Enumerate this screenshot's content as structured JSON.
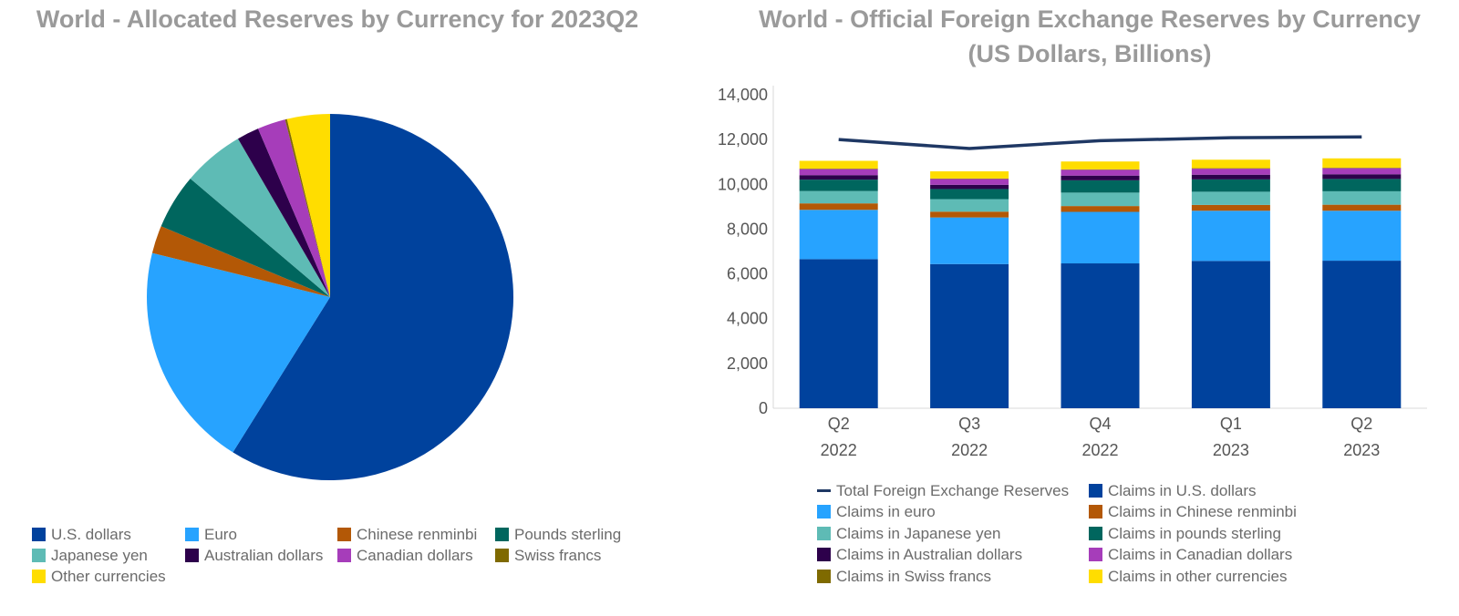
{
  "chart_data": [
    {
      "type": "pie",
      "title": "World - Allocated Reserves by Currency for 2023Q2",
      "legend_position": "bottom",
      "slices": [
        {
          "label": "U.S. dollars",
          "value": 58.9,
          "color": "#00429D"
        },
        {
          "label": "Euro",
          "value": 19.97,
          "color": "#27A3FF"
        },
        {
          "label": "Chinese renminbi",
          "value": 2.45,
          "color": "#B35806"
        },
        {
          "label": "Pounds sterling",
          "value": 4.88,
          "color": "#00665E"
        },
        {
          "label": "Japanese yen",
          "value": 5.42,
          "color": "#5EBBB5"
        },
        {
          "label": "Australian dollars",
          "value": 1.95,
          "color": "#2D004B"
        },
        {
          "label": "Canadian dollars",
          "value": 2.48,
          "color": "#A63DBA"
        },
        {
          "label": "Swiss francs",
          "value": 0.17,
          "color": "#7F6A00"
        },
        {
          "label": "Other currencies",
          "value": 3.78,
          "color": "#FFDD00"
        }
      ]
    },
    {
      "type": "bar",
      "stacked": true,
      "title": "World - Official Foreign Exchange Reserves by Currency",
      "subtitle": "(US Dollars, Billions)",
      "categories": [
        [
          "Q2",
          "2022"
        ],
        [
          "Q3",
          "2022"
        ],
        [
          "Q4",
          "2022"
        ],
        [
          "Q1",
          "2023"
        ],
        [
          "Q2",
          "2023"
        ]
      ],
      "ylim": [
        0,
        14000
      ],
      "yticks": [
        "0",
        "2,000",
        "4,000",
        "6,000",
        "8,000",
        "10,000",
        "12,000",
        "14,000"
      ],
      "ytick_values": [
        0,
        2000,
        4000,
        6000,
        8000,
        10000,
        12000,
        14000
      ],
      "legend_position": "bottom",
      "series": [
        {
          "name": "Claims in U.S. dollars",
          "color": "#00429D",
          "values": [
            6660,
            6440,
            6470,
            6580,
            6590
          ]
        },
        {
          "name": "Claims in euro",
          "color": "#27A3FF",
          "values": [
            2200,
            2080,
            2300,
            2240,
            2230
          ]
        },
        {
          "name": "Claims in Chinese renminbi",
          "color": "#B35806",
          "values": [
            290,
            260,
            260,
            260,
            270
          ]
        },
        {
          "name": "Claims in Japanese yen",
          "color": "#5EBBB5",
          "values": [
            550,
            560,
            600,
            590,
            600
          ]
        },
        {
          "name": "Claims in pounds sterling",
          "color": "#00665E",
          "values": [
            510,
            450,
            550,
            550,
            550
          ]
        },
        {
          "name": "Claims in Australian dollars",
          "color": "#2D004B",
          "values": [
            200,
            190,
            210,
            210,
            210
          ]
        },
        {
          "name": "Claims in Canadian dollars",
          "color": "#A63DBA",
          "values": [
            270,
            260,
            260,
            270,
            270
          ]
        },
        {
          "name": "Claims in Swiss francs",
          "color": "#7F6A00",
          "values": [
            20,
            20,
            20,
            20,
            20
          ]
        },
        {
          "name": "Claims in other currencies",
          "color": "#FFDD00",
          "values": [
            350,
            320,
            350,
            380,
            420
          ]
        }
      ],
      "line": {
        "name": "Total Foreign Exchange Reserves",
        "color": "#1F3864",
        "values": [
          12000,
          11600,
          11950,
          12080,
          12120
        ]
      },
      "legend_order": [
        "Total Foreign Exchange Reserves",
        "Claims in U.S. dollars",
        "Claims in euro",
        "Claims in Chinese renminbi",
        "Claims in Japanese yen",
        "Claims in pounds sterling",
        "Claims in Australian dollars",
        "Claims in Canadian dollars",
        "Claims in Swiss francs",
        "Claims in other currencies"
      ]
    }
  ]
}
